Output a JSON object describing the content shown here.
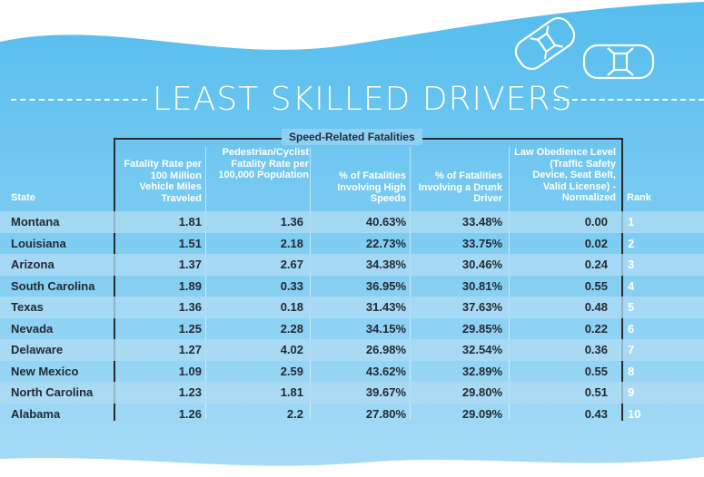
{
  "title": "LEAST SKILLED DRIVERS",
  "group_label": "Speed-Related Fatalities",
  "headers": {
    "state": "State",
    "fatality_rate": "Fatality Rate per 100 Million Vehicle Miles Traveled",
    "ped_cyclist": "Pedestrian/Cyclist Fatality Rate per 100,000 Population",
    "high_speeds": "% of Fatalities Involving High Speeds",
    "drunk_driver": "% of Fatalities Involving a Drunk Driver",
    "law_obedience": "Law Obedience Level (Traffic Safety Device, Seat Belt, Valid License) - Normalized",
    "rank": "Rank"
  },
  "rows": [
    {
      "state": "Montana",
      "c1": "1.81",
      "c2": "1.36",
      "c3": "40.63%",
      "c4": "33.48%",
      "c5": "0.00",
      "rank": "1"
    },
    {
      "state": "Louisiana",
      "c1": "1.51",
      "c2": "2.18",
      "c3": "22.73%",
      "c4": "33.75%",
      "c5": "0.02",
      "rank": "2"
    },
    {
      "state": "Arizona",
      "c1": "1.37",
      "c2": "2.67",
      "c3": "34.38%",
      "c4": "30.46%",
      "c5": "0.24",
      "rank": "3"
    },
    {
      "state": "South Carolina",
      "c1": "1.89",
      "c2": "0.33",
      "c3": "36.95%",
      "c4": "30.81%",
      "c5": "0.55",
      "rank": "4"
    },
    {
      "state": "Texas",
      "c1": "1.36",
      "c2": "0.18",
      "c3": "31.43%",
      "c4": "37.63%",
      "c5": "0.48",
      "rank": "5"
    },
    {
      "state": "Nevada",
      "c1": "1.25",
      "c2": "2.28",
      "c3": "34.15%",
      "c4": "29.85%",
      "c5": "0.22",
      "rank": "6"
    },
    {
      "state": "Delaware",
      "c1": "1.27",
      "c2": "4.02",
      "c3": "26.98%",
      "c4": "32.54%",
      "c5": "0.36",
      "rank": "7"
    },
    {
      "state": "New Mexico",
      "c1": "1.09",
      "c2": "2.59",
      "c3": "43.62%",
      "c4": "32.89%",
      "c5": "0.55",
      "rank": "8"
    },
    {
      "state": "North Carolina",
      "c1": "1.23",
      "c2": "1.81",
      "c3": "39.67%",
      "c4": "29.80%",
      "c5": "0.51",
      "rank": "9"
    },
    {
      "state": "Alabama",
      "c1": "1.26",
      "c2": "2.2",
      "c3": "27.80%",
      "c4": "29.09%",
      "c5": "0.43",
      "rank": "10"
    }
  ],
  "colors": {
    "background_top": "#5cc0ef",
    "background_bottom": "#a8dcf6",
    "band": "#aedbf4",
    "text_dark": "#222a33",
    "text_light": "#ffffff"
  },
  "icons": [
    "car-icon",
    "car-icon"
  ]
}
